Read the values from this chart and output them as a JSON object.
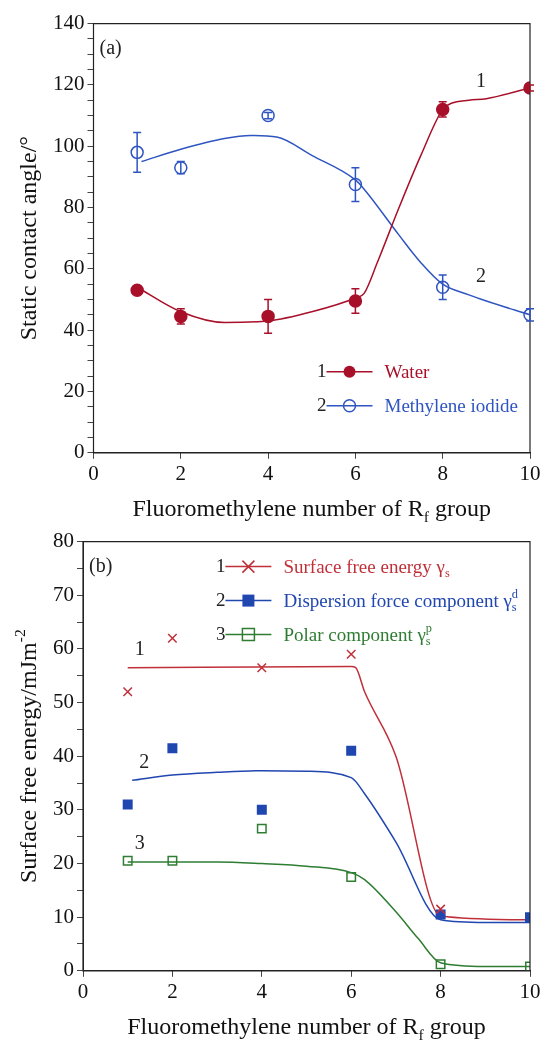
{
  "chart_data": [
    {
      "type": "scatter",
      "xlabel": "Fluoromethylene number of R$_{f}$ group",
      "ylabel": "Static contact angle/°",
      "x": [
        1,
        2,
        4,
        6,
        8,
        10
      ],
      "series": [
        {
          "name": "Water",
          "type": "scatter",
          "color": "#a8102a",
          "marker": "circle",
          "values": [
            53,
            44.5,
            44.5,
            49.5,
            112,
            119
          ],
          "errors": [
            null,
            2.5,
            5.5,
            4,
            2.5,
            1
          ]
        },
        {
          "name": "Methylene iodide",
          "type": "scatter",
          "color": "#2f55c0",
          "marker": "circle-open",
          "values": [
            98,
            93,
            110,
            87.5,
            54,
            45
          ],
          "errors": [
            6.5,
            2,
            1,
            5.5,
            4,
            2
          ]
        },
        {
          "type": "line",
          "color": "#a8102a",
          "x": [
            1,
            2,
            3,
            4,
            5,
            6,
            6.2,
            6.5,
            7,
            7.5,
            8,
            8.2,
            8.6,
            9,
            10
          ],
          "values": [
            54,
            46,
            42.5,
            43,
            46,
            50.5,
            52,
            62,
            80,
            97,
            112,
            114,
            115,
            115.5,
            119
          ]
        },
        {
          "type": "line",
          "color": "#2f55c0",
          "x": [
            1.1,
            2,
            3,
            3.6,
            4.2,
            5,
            6,
            6.2,
            7,
            7.5,
            8,
            8.6,
            9,
            10
          ],
          "values": [
            95,
            99,
            102.5,
            103.5,
            103,
            97,
            89,
            86,
            71,
            62,
            55,
            51.5,
            49.5,
            45
          ]
        }
      ],
      "annotations": [
        "(a)",
        "1",
        "2",
        {
          "text": "1",
          "x": 8.6,
          "y": 115
        },
        {
          "text": "2",
          "x": 8.6,
          "y": 51.5
        }
      ],
      "xlim": [
        0,
        10
      ],
      "xticks": [
        0,
        2,
        4,
        6,
        8,
        10
      ],
      "ylim": [
        0,
        140
      ],
      "yticks": [
        0,
        {
          "value": 5,
          "label": null
        },
        {
          "value": 10,
          "label": null
        },
        {
          "value": 15,
          "label": null
        },
        20,
        {
          "value": 25,
          "label": null
        },
        {
          "value": 30,
          "label": null
        },
        {
          "value": 35,
          "label": null
        },
        40,
        {
          "value": 45,
          "label": null
        },
        {
          "value": 50,
          "label": null
        },
        {
          "value": 55,
          "label": null
        },
        60,
        {
          "value": 65,
          "label": null
        },
        {
          "value": 70,
          "label": null
        },
        {
          "value": 75,
          "label": null
        },
        80,
        {
          "value": 85,
          "label": null
        },
        {
          "value": 90,
          "label": null
        },
        {
          "value": 95,
          "label": null
        },
        100,
        {
          "value": 105,
          "label": null
        },
        {
          "value": 110,
          "label": null
        },
        {
          "value": 115,
          "label": null
        },
        120,
        {
          "value": 125,
          "label": null
        },
        {
          "value": 130,
          "label": null
        },
        {
          "value": 135,
          "label": null
        },
        140
      ],
      "grid": false,
      "legend": "bottom right"
    },
    {
      "type": "scatter",
      "xlabel": "Fluoromethylene number of R$_{f}$ group",
      "ylabel": "Surface free energy/mJm$^{-2}$",
      "x": [
        1,
        2,
        4,
        6,
        8,
        10
      ],
      "series": [
        {
          "name": "Surface free energy γ$_{s}$",
          "type": "scatter",
          "color": "#c0303a",
          "marker": "cross",
          "values": [
            52,
            62,
            56.5,
            59,
            11.5,
            null
          ]
        },
        {
          "name": "Dispersion force component γ$_{s}$$^{d}$",
          "type": "scatter",
          "color": "#2046b0",
          "marker": "square",
          "values": [
            31,
            41.5,
            30,
            41,
            10.5,
            10
          ]
        },
        {
          "name": "Polar component γ$_{s}$$^{p}$",
          "type": "scatter",
          "color": "#2e7d32",
          "marker": "square-open",
          "values": [
            20.5,
            20.5,
            26.5,
            17.5,
            1.2,
            0.8
          ]
        },
        {
          "type": "line",
          "color": "#c0303a",
          "x": [
            1,
            6,
            6.1,
            6.3,
            7,
            8,
            10
          ],
          "values": [
            56.5,
            56.7,
            56.5,
            52,
            40,
            10.2,
            9.5
          ]
        },
        {
          "type": "line",
          "color": "#2046b0",
          "x": [
            1.1,
            2,
            3,
            4,
            5,
            6,
            6.3,
            7,
            8,
            9,
            10
          ],
          "values": [
            35.5,
            36.5,
            37,
            37.3,
            37.2,
            36,
            33,
            24,
            9.5,
            9,
            9
          ]
        },
        {
          "type": "line",
          "color": "#2e7d32",
          "x": [
            1,
            3,
            4,
            5,
            6,
            6.3,
            7,
            7.5,
            8,
            9,
            10
          ],
          "values": [
            20.3,
            20.3,
            20,
            19.5,
            18.3,
            17,
            11,
            6,
            1.5,
            0.8,
            0.8
          ]
        }
      ],
      "annotations": [
        "(b)",
        "1",
        "2",
        "3",
        {
          "text": "1",
          "x": 1,
          "y": 56.5
        },
        {
          "text": "2",
          "x": 1.1,
          "y": 35.5
        },
        {
          "text": "3",
          "x": 1,
          "y": 20.3
        }
      ],
      "xlim": [
        0,
        10
      ],
      "xticks": [
        0,
        2,
        4,
        6,
        8,
        10
      ],
      "ylim": [
        0,
        80
      ],
      "yticks": [
        0,
        {
          "value": 5,
          "label": null
        },
        10,
        {
          "value": 15,
          "label": null
        },
        20,
        {
          "value": 25,
          "label": null
        },
        30,
        {
          "value": 35,
          "label": null
        },
        40,
        {
          "value": 45,
          "label": null
        },
        50,
        {
          "value": 55,
          "label": null
        },
        60,
        {
          "value": 65,
          "label": null
        },
        70,
        {
          "value": 75,
          "label": null
        },
        80
      ],
      "grid": false,
      "legend": "top right"
    }
  ]
}
